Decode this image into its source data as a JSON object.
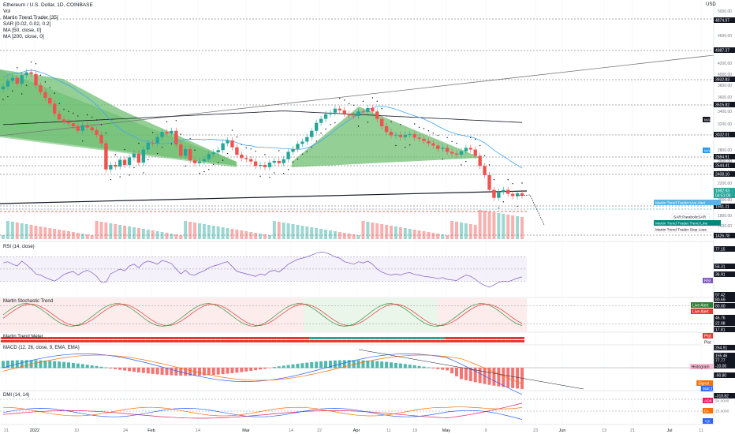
{
  "header": {
    "symbol": "Ethereum / U.S. Dollar, 1D, COINBASE",
    "currency": "USD",
    "indicators": [
      "Vol",
      "Martin Trend Trader [35]",
      "SAR [0.02, 0.02, 0.2]",
      "MA [50, close, 0]",
      "MA [200, close, 0]"
    ]
  },
  "panels": {
    "rsi": "RSI (14, close)",
    "stoch": "Martin Stochastic Trend",
    "meter": "Martin Trend Meter",
    "macd": "MACD (12, 26, close, 9, EMA, EMA)",
    "dmi": "DMI (14, 14)"
  },
  "chart_data": {
    "type": "candlestick",
    "x_ticks": [
      "21",
      "2022",
      "10",
      "24",
      "Feb",
      "14",
      "Mar",
      "14",
      "22",
      "Apr",
      "11",
      "19",
      "May",
      "9",
      "23",
      "Jun",
      "13",
      "21",
      "Jul",
      "11"
    ],
    "price_ticks": [
      "5000.00",
      "4600.00",
      "4200.00",
      "4000.00",
      "3800.00",
      "3600.00",
      "3400.00",
      "3200.00",
      "2800.00",
      "2600.00",
      "2400.00",
      "2200.00",
      "2000.00",
      "1800.00",
      "1600.00"
    ],
    "price_labels": [
      {
        "value": "4874.97",
        "kind": "dark"
      },
      {
        "value": "4387.37",
        "kind": "dark"
      },
      {
        "value": "3932.83",
        "kind": "dark"
      },
      {
        "value": "3515.82",
        "kind": "dark"
      },
      {
        "value": "3032.01",
        "kind": "dark"
      },
      {
        "value": "2684.91",
        "kind": "dark"
      },
      {
        "value": "2544.41",
        "kind": "dark"
      },
      {
        "value": "2408.10",
        "kind": "dark"
      },
      {
        "value": "1982.93",
        "kind": "green"
      },
      {
        "value": "04:51:09",
        "kind": "green"
      },
      {
        "value": "1941.11",
        "kind": "dark"
      },
      {
        "value": "1426.78",
        "kind": "dark"
      }
    ],
    "chart_tags": [
      {
        "text": "MA",
        "color": "#131722"
      },
      {
        "text": "MA",
        "color": "#2196f3"
      },
      {
        "text": "Martin Trend Trader:Live Alert",
        "color": "#5ab4e0"
      },
      {
        "text": "SAR:ParabolicSAR",
        "color": "#ffffff"
      },
      {
        "text": "Martin Trend Trader:Trend Line",
        "color": "#00897b"
      },
      {
        "text": "Martin Trend Trader:Stop Loss",
        "color": "#ffffff"
      }
    ],
    "rsi_labels": [
      "77.15",
      "56.31",
      "36.91",
      "RSI"
    ],
    "stoch_labels": [
      "97.42",
      "80.69",
      "80.00",
      "Live Alert",
      "Live Alert",
      "46.76",
      "22.98",
      "17.81"
    ],
    "meter_labels": [
      "Plot",
      "Plot"
    ],
    "macd_labels": [
      "264.91",
      "155.46",
      "77.77",
      "-10.00",
      "Histogram",
      "-90.80",
      "Signal",
      "MACD",
      "-318.82"
    ],
    "dmi_labels": [
      "ADX",
      "50.0000",
      "DI-",
      "25.0000",
      "+DI"
    ],
    "closes": [
      3900,
      4000,
      4050,
      3950,
      4100,
      4150,
      4120,
      3920,
      3800,
      3700,
      3600,
      3420,
      3320,
      3280,
      3250,
      3200,
      3120,
      3220,
      3180,
      3130,
      3050,
      2900,
      2440,
      2520,
      2490,
      2610,
      2520,
      2650,
      2720,
      2560,
      2790,
      2910,
      2900,
      3010,
      3100,
      3070,
      3120,
      2880,
      2680,
      2800,
      2600,
      2550,
      2580,
      2620,
      2710,
      2740,
      2780,
      2900,
      2950,
      2830,
      2700,
      2640,
      2620,
      2580,
      2500,
      2520,
      2480,
      2560,
      2590,
      2550,
      2620,
      2750,
      2800,
      2890,
      2930,
      3010,
      3120,
      3260,
      3330,
      3410,
      3440,
      3510,
      3480,
      3420,
      3390,
      3380,
      3460,
      3450,
      3520,
      3460,
      3330,
      3200,
      3100,
      3040,
      3050,
      3010,
      3050,
      3060,
      3000,
      2980,
      2940,
      2900,
      2860,
      2800,
      2820,
      2750,
      2720,
      2700,
      2760,
      2820,
      2790,
      2680,
      2500,
      2340,
      2080,
      1940,
      2050,
      2080,
      2010,
      1970,
      2020,
      1982
    ],
    "rsi": [
      60,
      62,
      58,
      55,
      63,
      57,
      50,
      42,
      40,
      36,
      33,
      30,
      35,
      41,
      44,
      46,
      40,
      45,
      48,
      44,
      38,
      28,
      28,
      42,
      46,
      50,
      47,
      55,
      58,
      52,
      60,
      63,
      61,
      58,
      64,
      62,
      59,
      50,
      42,
      48,
      41,
      40,
      44,
      47,
      52,
      55,
      57,
      60,
      62,
      54,
      46,
      44,
      42,
      40,
      38,
      42,
      40,
      46,
      48,
      45,
      51,
      58,
      62,
      66,
      68,
      70,
      73,
      76,
      78,
      77,
      74,
      70,
      68,
      62,
      60,
      58,
      62,
      60,
      63,
      58,
      50,
      45,
      42,
      40,
      42,
      40,
      43,
      44,
      41,
      40,
      38,
      37,
      36,
      34,
      36,
      33,
      32,
      31,
      36,
      40,
      38,
      33,
      27,
      23,
      20,
      24,
      28,
      30,
      29,
      32,
      35,
      37
    ]
  },
  "colors": {
    "up": "#26a69a",
    "down": "#ef5350",
    "wedge": "#66bb6a",
    "ma50": "#42a5f5",
    "ma200": "#131722",
    "bg_red": "#fdecec",
    "bg_green": "#eaf6ea"
  }
}
